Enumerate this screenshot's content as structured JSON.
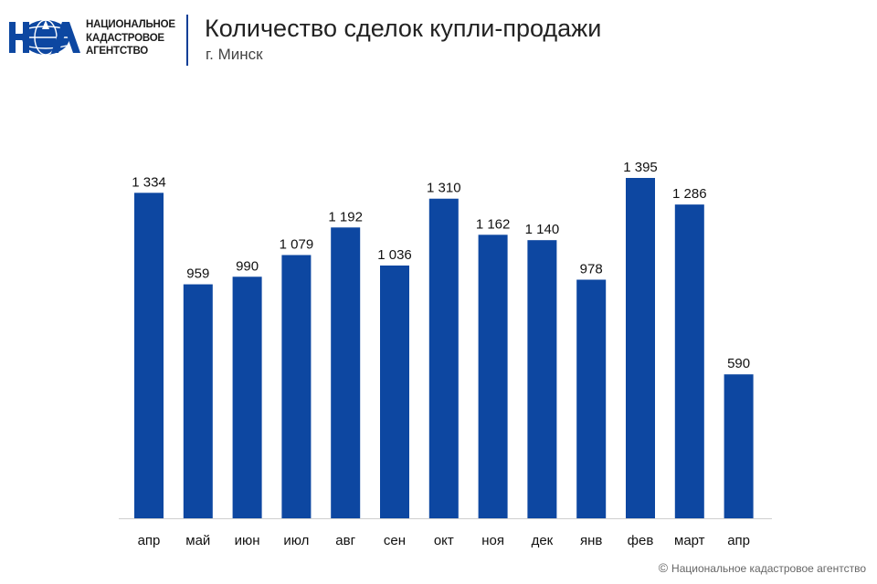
{
  "logo": {
    "mark_text": "НКА",
    "lines": [
      "НАЦИОНАЛЬНОЕ",
      "КАДАСТРОВОЕ",
      "АГЕНТСТВО"
    ]
  },
  "header": {
    "title": "Количество сделок купли-продажи",
    "subtitle": "г. Минск"
  },
  "footer": {
    "copyright_symbol": "©",
    "text": "Национальное кадастровое агентство"
  },
  "colors": {
    "bar": "#0d47a1",
    "accent": "#0d3e96"
  },
  "chart_data": {
    "type": "bar",
    "title": "Количество сделок купли-продажи",
    "subtitle": "г. Минск",
    "categories": [
      "апр",
      "май",
      "июн",
      "июл",
      "авг",
      "сен",
      "окт",
      "ноя",
      "дек",
      "янв",
      "фев",
      "март",
      "апр"
    ],
    "values": [
      1334,
      959,
      990,
      1079,
      1192,
      1036,
      1310,
      1162,
      1140,
      978,
      1395,
      1286,
      590
    ],
    "value_labels": [
      "1 334",
      "959",
      "990",
      "1 079",
      "1 192",
      "1 036",
      "1 310",
      "1 162",
      "1 140",
      "978",
      "1 395",
      "1 286",
      "590"
    ],
    "xlabel": "",
    "ylabel": "",
    "ylim": [
      0,
      1395
    ],
    "grid": false,
    "legend": "none"
  }
}
